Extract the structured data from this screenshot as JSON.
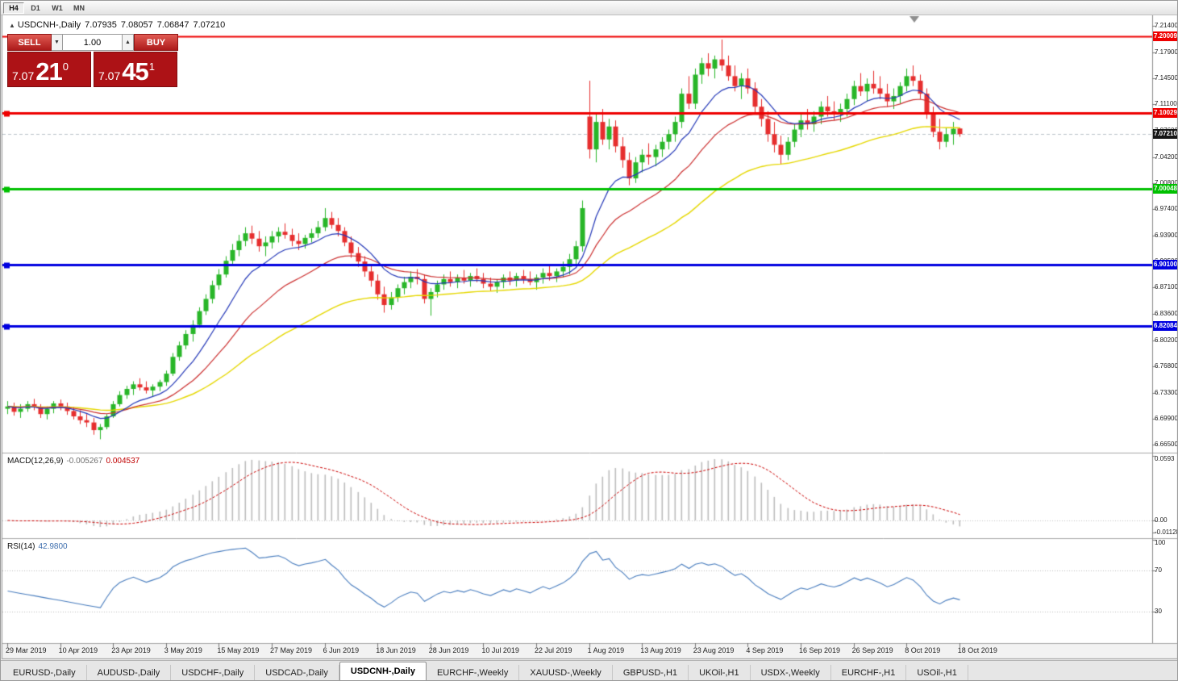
{
  "toolbar": {
    "timeframes": [
      {
        "label": "H4",
        "active": true
      },
      {
        "label": "D1",
        "active": false
      },
      {
        "label": "W1",
        "active": false
      },
      {
        "label": "MN",
        "active": false
      }
    ]
  },
  "chart_header": {
    "marker": "▲",
    "symbol": "USDCNH-,Daily",
    "open": "7.07935",
    "high": "7.08057",
    "low": "7.06847",
    "close": "7.07210"
  },
  "trade_panel": {
    "sell_label": "SELL",
    "buy_label": "BUY",
    "volume": "1.00",
    "down_glyph": "▼",
    "up_glyph": "▲",
    "sell_price": {
      "whole": "7.07",
      "pips": "21",
      "point": "0"
    },
    "buy_price": {
      "whole": "7.07",
      "pips": "45",
      "point": "1"
    }
  },
  "price_axis": {
    "labels": [
      "7.21400",
      "7.17900",
      "7.14500",
      "7.11100",
      "7.07600",
      "7.04200",
      "7.00800",
      "6.97400",
      "6.93900",
      "6.90500",
      "6.87100",
      "6.83600",
      "6.80200",
      "6.76800",
      "6.73300",
      "6.69900",
      "6.66500"
    ],
    "badges": [
      {
        "text": "7.20009",
        "color": "#ee0000"
      },
      {
        "text": "7.10029",
        "color": "#ee0000"
      },
      {
        "text": "7.00048",
        "color": "#00c000"
      },
      {
        "text": "6.90100",
        "color": "#0000e0"
      },
      {
        "text": "6.82084",
        "color": "#0000e0"
      },
      {
        "text": "7.07210",
        "color": "#161616"
      }
    ]
  },
  "hlines": [
    {
      "price": 7.20009,
      "color": "#ee0000",
      "width": 2,
      "handle": false
    },
    {
      "price": 7.10029,
      "color": "#ee0000",
      "width": 3,
      "handle": true
    },
    {
      "price": 7.00048,
      "color": "#00c000",
      "width": 3,
      "handle": true
    },
    {
      "price": 6.901,
      "color": "#0000e0",
      "width": 3,
      "handle": true
    },
    {
      "price": 6.82084,
      "color": "#0000e0",
      "width": 3,
      "handle": true
    }
  ],
  "indicators": {
    "macd": {
      "name": "MACD(12,26,9)",
      "value": "-0.005267",
      "signal_value": "0.004537",
      "axis": [
        {
          "text": "0.0593",
          "value": 0.0593
        },
        {
          "text": "0.00",
          "value": 0
        },
        {
          "text": "-0.01128",
          "value": -0.01128
        }
      ]
    },
    "rsi": {
      "name": "RSI(14)",
      "value": "42.9800",
      "axis": [
        {
          "text": "100",
          "value": 100
        },
        {
          "text": "70",
          "value": 70
        },
        {
          "text": "30",
          "value": 30
        }
      ]
    }
  },
  "time_axis": {
    "bars_per_tick": 8,
    "labels": [
      "29 Mar 2019",
      "10 Apr 2019",
      "23 Apr 2019",
      "3 May 2019",
      "15 May 2019",
      "27 May 2019",
      "6 Jun 2019",
      "18 Jun 2019",
      "28 Jun 2019",
      "10 Jul 2019",
      "22 Jul 2019",
      "1 Aug 2019",
      "13 Aug 2019",
      "23 Aug 2019",
      "4 Sep 2019",
      "16 Sep 2019",
      "26 Sep 2019",
      "8 Oct 2019",
      "18 Oct 2019"
    ]
  },
  "tabs": [
    {
      "label": "EURUSD-,Daily",
      "active": false
    },
    {
      "label": "AUDUSD-,Daily",
      "active": false
    },
    {
      "label": "USDCHF-,Daily",
      "active": false
    },
    {
      "label": "USDCAD-,Daily",
      "active": false
    },
    {
      "label": "USDCNH-,Daily",
      "active": true
    },
    {
      "label": "EURCHF-,Weekly",
      "active": false
    },
    {
      "label": "XAUUSD-,Weekly",
      "active": false
    },
    {
      "label": "GBPUSD-,H1",
      "active": false
    },
    {
      "label": "UKOil-,H1",
      "active": false
    },
    {
      "label": "USDX-,Weekly",
      "active": false
    },
    {
      "label": "EURCHF-,H1",
      "active": false
    },
    {
      "label": "USOil-,H1",
      "active": false
    }
  ],
  "chart_data": {
    "type": "candlestick",
    "symbol": "USDCNH",
    "timeframe": "Daily",
    "up_color": "#28b628",
    "down_color": "#e62e2e",
    "ma": {
      "fast": {
        "period": 10,
        "color": "#2438b8"
      },
      "mid": {
        "period": 22,
        "color": "#cc2f2f"
      },
      "slow": {
        "period": 50,
        "color": "#e6d800"
      }
    },
    "macd": {
      "fast": 12,
      "slow": 26,
      "signal": 9,
      "hist_color": "#bdbdbd",
      "signal_color": "#cc0000"
    },
    "rsi": {
      "period": 14,
      "color": "#4a7ebf",
      "levels": [
        70,
        30
      ]
    },
    "price_range": {
      "top": 7.2235,
      "bottom": 6.6545
    },
    "ohlc": [
      [
        6.712,
        6.722,
        6.705,
        6.715
      ],
      [
        6.715,
        6.72,
        6.703,
        6.708
      ],
      [
        6.708,
        6.718,
        6.7,
        6.712
      ],
      [
        6.712,
        6.722,
        6.708,
        6.718
      ],
      [
        6.718,
        6.725,
        6.71,
        6.714
      ],
      [
        6.714,
        6.718,
        6.7,
        6.705
      ],
      [
        6.705,
        6.715,
        6.698,
        6.712
      ],
      [
        6.712,
        6.722,
        6.706,
        6.719
      ],
      [
        6.719,
        6.724,
        6.71,
        6.715
      ],
      [
        6.715,
        6.72,
        6.704,
        6.709
      ],
      [
        6.709,
        6.714,
        6.698,
        6.702
      ],
      [
        6.702,
        6.71,
        6.692,
        6.697
      ],
      [
        6.697,
        6.705,
        6.688,
        6.694
      ],
      [
        6.694,
        6.7,
        6.678,
        6.684
      ],
      [
        6.684,
        6.692,
        6.672,
        6.688
      ],
      [
        6.688,
        6.705,
        6.685,
        6.702
      ],
      [
        6.702,
        6.722,
        6.7,
        6.718
      ],
      [
        6.718,
        6.735,
        6.715,
        6.73
      ],
      [
        6.73,
        6.742,
        6.725,
        6.738
      ],
      [
        6.738,
        6.748,
        6.73,
        6.744
      ],
      [
        6.744,
        6.752,
        6.736,
        6.74
      ],
      [
        6.74,
        6.748,
        6.732,
        6.736
      ],
      [
        6.736,
        6.744,
        6.728,
        6.741
      ],
      [
        6.741,
        6.75,
        6.735,
        6.747
      ],
      [
        6.747,
        6.762,
        6.742,
        6.758
      ],
      [
        6.758,
        6.785,
        6.755,
        6.78
      ],
      [
        6.78,
        6.8,
        6.775,
        6.795
      ],
      [
        6.795,
        6.815,
        6.79,
        6.81
      ],
      [
        6.81,
        6.828,
        6.8,
        6.822
      ],
      [
        6.822,
        6.845,
        6.818,
        6.84
      ],
      [
        6.84,
        6.862,
        6.835,
        6.856
      ],
      [
        6.856,
        6.88,
        6.85,
        6.874
      ],
      [
        6.874,
        6.895,
        6.868,
        6.888
      ],
      [
        6.888,
        6.912,
        6.884,
        6.906
      ],
      [
        6.906,
        6.928,
        6.9,
        6.92
      ],
      [
        6.92,
        6.94,
        6.912,
        6.932
      ],
      [
        6.932,
        6.95,
        6.925,
        6.942
      ],
      [
        6.942,
        6.952,
        6.928,
        6.935
      ],
      [
        6.935,
        6.945,
        6.918,
        6.925
      ],
      [
        6.925,
        6.938,
        6.912,
        6.93
      ],
      [
        6.93,
        6.945,
        6.922,
        6.938
      ],
      [
        6.938,
        6.95,
        6.93,
        6.944
      ],
      [
        6.944,
        6.955,
        6.935,
        6.94
      ],
      [
        6.94,
        6.948,
        6.925,
        6.932
      ],
      [
        6.932,
        6.942,
        6.92,
        6.928
      ],
      [
        6.928,
        6.94,
        6.922,
        6.936
      ],
      [
        6.936,
        6.948,
        6.93,
        6.942
      ],
      [
        6.942,
        6.958,
        6.936,
        6.95
      ],
      [
        6.95,
        6.975,
        6.945,
        6.962
      ],
      [
        6.962,
        6.97,
        6.948,
        6.953
      ],
      [
        6.953,
        6.962,
        6.938,
        6.945
      ],
      [
        6.945,
        6.95,
        6.925,
        6.93
      ],
      [
        6.93,
        6.938,
        6.91,
        6.916
      ],
      [
        6.916,
        6.924,
        6.898,
        6.905
      ],
      [
        6.905,
        6.912,
        6.885,
        6.892
      ],
      [
        6.892,
        6.9,
        6.872,
        6.88
      ],
      [
        6.88,
        6.888,
        6.855,
        6.862
      ],
      [
        6.862,
        6.872,
        6.838,
        6.848
      ],
      [
        6.848,
        6.865,
        6.842,
        6.858
      ],
      [
        6.858,
        6.875,
        6.852,
        6.87
      ],
      [
        6.87,
        6.885,
        6.862,
        6.878
      ],
      [
        6.878,
        6.892,
        6.87,
        6.885
      ],
      [
        6.885,
        6.895,
        6.875,
        6.882
      ],
      [
        6.882,
        6.888,
        6.85,
        6.856
      ],
      [
        6.856,
        6.87,
        6.834,
        6.865
      ],
      [
        6.865,
        6.88,
        6.858,
        6.875
      ],
      [
        6.875,
        6.888,
        6.868,
        6.882
      ],
      [
        6.882,
        6.892,
        6.872,
        6.878
      ],
      [
        6.878,
        6.888,
        6.87,
        6.884
      ],
      [
        6.884,
        6.894,
        6.876,
        6.88
      ],
      [
        6.88,
        6.89,
        6.872,
        6.886
      ],
      [
        6.886,
        6.896,
        6.878,
        6.882
      ],
      [
        6.882,
        6.89,
        6.87,
        6.876
      ],
      [
        6.876,
        6.884,
        6.866,
        6.872
      ],
      [
        6.872,
        6.882,
        6.864,
        6.878
      ],
      [
        6.878,
        6.888,
        6.87,
        6.884
      ],
      [
        6.884,
        6.892,
        6.874,
        6.88
      ],
      [
        6.88,
        6.89,
        6.872,
        6.886
      ],
      [
        6.886,
        6.894,
        6.876,
        6.882
      ],
      [
        6.882,
        6.892,
        6.874,
        6.878
      ],
      [
        6.878,
        6.888,
        6.868,
        6.884
      ],
      [
        6.884,
        6.896,
        6.876,
        6.89
      ],
      [
        6.89,
        6.9,
        6.88,
        6.886
      ],
      [
        6.886,
        6.896,
        6.878,
        6.892
      ],
      [
        6.892,
        6.905,
        6.884,
        6.898
      ],
      [
        6.898,
        6.915,
        6.888,
        6.908
      ],
      [
        6.908,
        6.932,
        6.9,
        6.925
      ],
      [
        6.925,
        6.985,
        6.918,
        6.975
      ],
      [
        7.095,
        7.142,
        7.04,
        7.052
      ],
      [
        7.052,
        7.098,
        7.035,
        7.088
      ],
      [
        7.088,
        7.105,
        7.058,
        7.065
      ],
      [
        7.065,
        7.092,
        7.052,
        7.082
      ],
      [
        7.082,
        7.09,
        7.048,
        7.056
      ],
      [
        7.056,
        7.068,
        7.028,
        7.038
      ],
      [
        7.038,
        7.048,
        7.005,
        7.014
      ],
      [
        7.014,
        7.042,
        7.008,
        7.035
      ],
      [
        7.035,
        7.052,
        7.022,
        7.045
      ],
      [
        7.045,
        7.06,
        7.032,
        7.042
      ],
      [
        7.042,
        7.058,
        7.03,
        7.052
      ],
      [
        7.052,
        7.068,
        7.042,
        7.062
      ],
      [
        7.062,
        7.078,
        7.052,
        7.072
      ],
      [
        7.072,
        7.095,
        7.062,
        7.088
      ],
      [
        7.088,
        7.132,
        7.08,
        7.125
      ],
      [
        7.125,
        7.148,
        7.105,
        7.112
      ],
      [
        7.112,
        7.158,
        7.105,
        7.15
      ],
      [
        7.15,
        7.172,
        7.138,
        7.165
      ],
      [
        7.165,
        7.178,
        7.148,
        7.158
      ],
      [
        7.158,
        7.175,
        7.145,
        7.17
      ],
      [
        7.17,
        7.196,
        7.155,
        7.162
      ],
      [
        7.162,
        7.175,
        7.142,
        7.148
      ],
      [
        7.148,
        7.162,
        7.128,
        7.135
      ],
      [
        7.135,
        7.152,
        7.118,
        7.145
      ],
      [
        7.145,
        7.158,
        7.125,
        7.132
      ],
      [
        7.132,
        7.14,
        7.098,
        7.108
      ],
      [
        7.108,
        7.118,
        7.082,
        7.092
      ],
      [
        7.092,
        7.102,
        7.062,
        7.072
      ],
      [
        7.072,
        7.088,
        7.048,
        7.058
      ],
      [
        7.058,
        7.07,
        7.032,
        7.045
      ],
      [
        7.045,
        7.068,
        7.038,
        7.062
      ],
      [
        7.062,
        7.085,
        7.055,
        7.078
      ],
      [
        7.078,
        7.098,
        7.068,
        7.09
      ],
      [
        7.09,
        7.105,
        7.078,
        7.085
      ],
      [
        7.085,
        7.102,
        7.075,
        7.095
      ],
      [
        7.095,
        7.115,
        7.085,
        7.108
      ],
      [
        7.108,
        7.122,
        7.095,
        7.102
      ],
      [
        7.102,
        7.115,
        7.09,
        7.098
      ],
      [
        7.098,
        7.112,
        7.088,
        7.105
      ],
      [
        7.105,
        7.125,
        7.095,
        7.118
      ],
      [
        7.118,
        7.142,
        7.11,
        7.135
      ],
      [
        7.135,
        7.152,
        7.122,
        7.128
      ],
      [
        7.128,
        7.145,
        7.115,
        7.138
      ],
      [
        7.138,
        7.155,
        7.125,
        7.132
      ],
      [
        7.132,
        7.148,
        7.118,
        7.125
      ],
      [
        7.125,
        7.138,
        7.108,
        7.115
      ],
      [
        7.115,
        7.132,
        7.105,
        7.122
      ],
      [
        7.122,
        7.14,
        7.112,
        7.135
      ],
      [
        7.135,
        7.158,
        7.128,
        7.148
      ],
      [
        7.148,
        7.162,
        7.135,
        7.142
      ],
      [
        7.142,
        7.15,
        7.118,
        7.125
      ],
      [
        7.125,
        7.132,
        7.092,
        7.098
      ],
      [
        7.098,
        7.108,
        7.068,
        7.075
      ],
      [
        7.075,
        7.092,
        7.052,
        7.062
      ],
      [
        7.062,
        7.08,
        7.055,
        7.072
      ],
      [
        7.072,
        7.088,
        7.058,
        7.079
      ],
      [
        7.0794,
        7.0806,
        7.0685,
        7.0721
      ]
    ]
  }
}
